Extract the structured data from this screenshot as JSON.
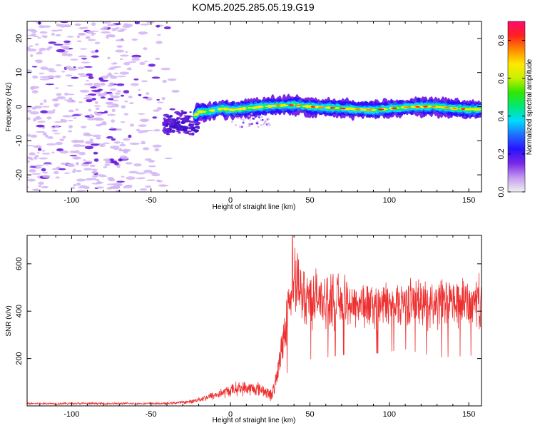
{
  "title": "KOM5.2025.285.05.19.G19",
  "colors": {
    "snr_line": "#ee3030",
    "frame": "#000000",
    "scatter_light": "#d2b4f5",
    "scatter_dark": "#6a1bdc"
  },
  "chart_data": [
    {
      "type": "heatmap",
      "name": "spectrogram",
      "xlabel": "Height of straight line (km)",
      "ylabel": "Frequency (Hz)",
      "xlim": [
        -128,
        158
      ],
      "ylim": [
        -25,
        25
      ],
      "xticks": [
        -100,
        -50,
        0,
        50,
        100,
        150
      ],
      "yticks": [
        -20,
        -10,
        0,
        10,
        20
      ],
      "ridge": [
        {
          "x": -30,
          "y": -5
        },
        {
          "x": -25,
          "y": -4
        },
        {
          "x": -20,
          "y": -1.5
        },
        {
          "x": -15,
          "y": -1.5
        },
        {
          "x": -5,
          "y": -0.5
        },
        {
          "x": 0,
          "y": -1
        },
        {
          "x": 10,
          "y": -0.5
        },
        {
          "x": 20,
          "y": 0
        },
        {
          "x": 30,
          "y": 0.3
        },
        {
          "x": 40,
          "y": 0.5
        },
        {
          "x": 50,
          "y": 0
        },
        {
          "x": 60,
          "y": -0.3
        },
        {
          "x": 70,
          "y": -0.5
        },
        {
          "x": 80,
          "y": -0.8
        },
        {
          "x": 90,
          "y": -1
        },
        {
          "x": 100,
          "y": -0.6
        },
        {
          "x": 110,
          "y": -0.2
        },
        {
          "x": 120,
          "y": 0
        },
        {
          "x": 130,
          "y": 0
        },
        {
          "x": 140,
          "y": -0.5
        },
        {
          "x": 150,
          "y": -0.8
        },
        {
          "x": 158,
          "y": -0.8
        }
      ],
      "noise_region_x": [
        -128,
        -30
      ]
    },
    {
      "type": "colorbar",
      "name": "colorbar",
      "label": "Normalized spectral amplitude",
      "range": [
        0.0,
        0.9
      ],
      "ticks": [
        "0.0",
        "0.2",
        "0.4",
        "0.6",
        "0.8"
      ],
      "tick_values": [
        0.0,
        0.2,
        0.4,
        0.6,
        0.8
      ],
      "colormap": [
        "#f0f0f0",
        "#c49af0",
        "#7a28e6",
        "#2a12ff",
        "#1f6cff",
        "#00dcff",
        "#00e878",
        "#31e600",
        "#c8f000",
        "#ffe800",
        "#ff8a00",
        "#ff2020",
        "#ff0a6e"
      ]
    },
    {
      "type": "line",
      "name": "snr",
      "xlabel": "Height of straight line (km)",
      "ylabel": "SNR (v/v)",
      "xlim": [
        -128,
        158
      ],
      "ylim": [
        0,
        720
      ],
      "xticks": [
        -100,
        -50,
        0,
        50,
        100,
        150
      ],
      "yticks": [
        200,
        400,
        600
      ],
      "envelope": [
        {
          "x": -128,
          "y": 10,
          "noise": 4
        },
        {
          "x": -40,
          "y": 10,
          "noise": 4
        },
        {
          "x": -25,
          "y": 18,
          "noise": 6
        },
        {
          "x": -10,
          "y": 45,
          "noise": 15
        },
        {
          "x": 5,
          "y": 75,
          "noise": 25
        },
        {
          "x": 20,
          "y": 70,
          "noise": 25
        },
        {
          "x": 25,
          "y": 45,
          "noise": 20
        },
        {
          "x": 28,
          "y": 80,
          "noise": 30
        },
        {
          "x": 32,
          "y": 230,
          "noise": 60
        },
        {
          "x": 36,
          "y": 420,
          "noise": 110
        },
        {
          "x": 40,
          "y": 520,
          "noise": 120
        },
        {
          "x": 45,
          "y": 470,
          "noise": 110
        },
        {
          "x": 55,
          "y": 450,
          "noise": 100
        },
        {
          "x": 70,
          "y": 440,
          "noise": 90
        },
        {
          "x": 90,
          "y": 420,
          "noise": 80
        },
        {
          "x": 110,
          "y": 440,
          "noise": 80
        },
        {
          "x": 130,
          "y": 430,
          "noise": 90
        },
        {
          "x": 158,
          "y": 440,
          "noise": 90
        }
      ],
      "peak": {
        "x": 39,
        "y": 720
      }
    }
  ]
}
